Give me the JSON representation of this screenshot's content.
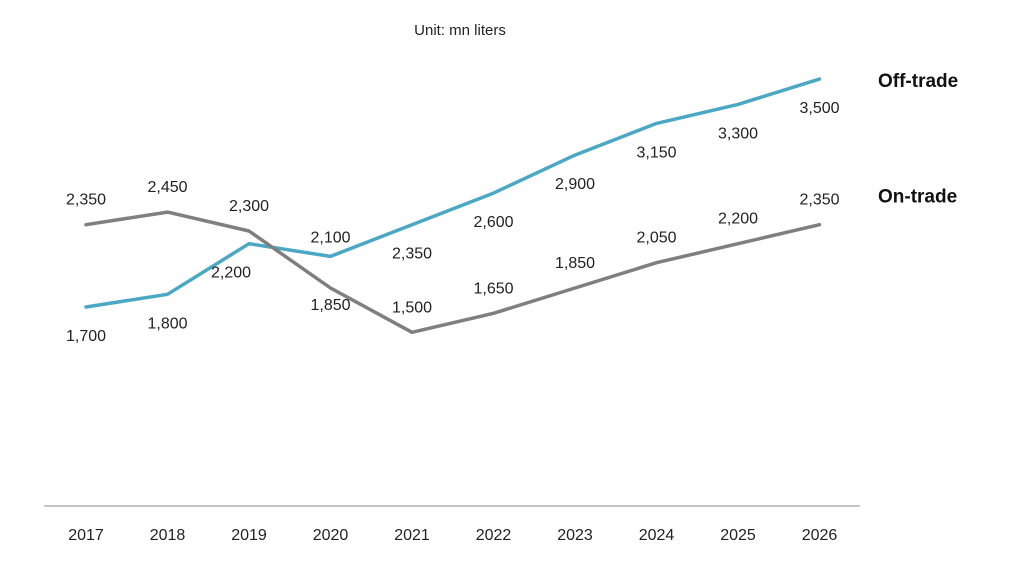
{
  "chart_data": {
    "type": "line",
    "subtitle": "Unit: mn liters",
    "x": [
      "2017",
      "2018",
      "2019",
      "2020",
      "2021",
      "2022",
      "2023",
      "2024",
      "2025",
      "2026"
    ],
    "series": [
      {
        "name": "Off-trade",
        "color": "#4aa8c4",
        "values": [
          1700,
          1800,
          2200,
          2100,
          2350,
          2600,
          2900,
          3150,
          3300,
          3500
        ],
        "labels": [
          "1,700",
          "1,800",
          "2,200",
          "2,100",
          "2,350",
          "2,600",
          "2,900",
          "3,150",
          "3,300",
          "3,500"
        ]
      },
      {
        "name": "On-trade",
        "color": "#7f7f7f",
        "values": [
          2350,
          2450,
          2300,
          1850,
          1500,
          1650,
          1850,
          2050,
          2200,
          2350
        ],
        "labels": [
          "2,350",
          "2,450",
          "2,300",
          "1,850",
          "1,500",
          "1,650",
          "1,850",
          "2,050",
          "2,200",
          "2,350"
        ]
      }
    ],
    "grid": false,
    "legend": "right, at line ends"
  }
}
